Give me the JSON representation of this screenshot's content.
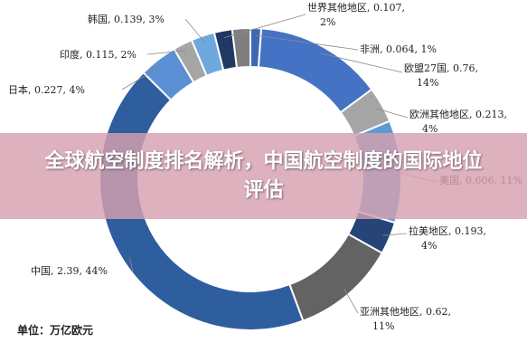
{
  "banner": {
    "title": "全球航空制度排名解析，中国航空制度的国际地位评估"
  },
  "unit_label": "单位：万亿欧元",
  "chart_data": {
    "type": "pie",
    "variant": "donut",
    "unit": "万亿欧元",
    "slices": [
      {
        "label": "非洲, 0.064, 1%",
        "value": 0.064,
        "percent": 1,
        "color": "#3e68b4"
      },
      {
        "label": "欧盟27国, 0.76, 14%",
        "value": 0.76,
        "percent": 14,
        "color": "#4472c4"
      },
      {
        "label": "欧洲其他地区, 0.213, 4%",
        "value": 0.213,
        "percent": 4,
        "color": "#a5a5a5"
      },
      {
        "label": "美国, 0.606, 11%",
        "value": 0.606,
        "percent": 11,
        "color": "#5b9bd5"
      },
      {
        "label": "拉美地区, 0.193, 4%",
        "value": 0.193,
        "percent": 4,
        "color": "#264478"
      },
      {
        "label": "亚洲其他地区, 0.62, 11%",
        "value": 0.62,
        "percent": 11,
        "color": "#636363"
      },
      {
        "label": "中国, 2.39, 44%",
        "value": 2.39,
        "percent": 44,
        "color": "#2e5e9e"
      },
      {
        "label": "日本, 0.227, 4%",
        "value": 0.227,
        "percent": 4,
        "color": "#5b8fd6"
      },
      {
        "label": "印度, 0.115, 2%",
        "value": 0.115,
        "percent": 2,
        "color": "#a5a5a5"
      },
      {
        "label": "韩国, 0.139, 3%",
        "value": 0.139,
        "percent": 3,
        "color": "#6fa8dc"
      },
      {
        "label": "世界其他地区, 0.107, 2%",
        "value": 0.107,
        "percent": 2,
        "color": "#1f3864"
      },
      {
        "label": "",
        "value": 0.107,
        "percent": 2,
        "color": "#7f7f7f"
      }
    ],
    "legend": "none"
  }
}
